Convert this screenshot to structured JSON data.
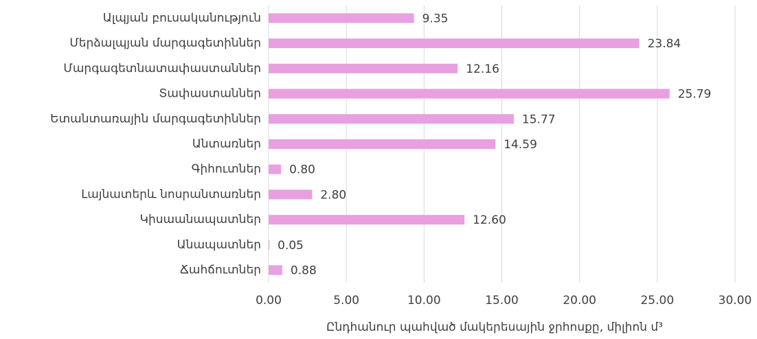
{
  "chart_data": {
    "type": "hbar",
    "categories": [
      "Ալպյան բուսականություն",
      "Մերձալպյան մարգագետիններ",
      "Մարգագետնատափաստաններ",
      "Տափաստաններ",
      "Ետանտառային մարգագետիններ",
      "Անտառներ",
      "Գիհուտներ",
      "Լայնատերև նոսրանտառներ",
      "Կիսաանապատներ",
      "Անապատներ",
      "Ճահճուտներ"
    ],
    "values": [
      9.35,
      23.84,
      12.16,
      25.79,
      15.77,
      14.59,
      0.8,
      2.8,
      12.6,
      0.05,
      0.88
    ],
    "value_labels": [
      "9.35",
      "23.84",
      "12.16",
      "25.79",
      "15.77",
      "14.59",
      "0.80",
      "2.80",
      "12.60",
      "0.05",
      "0.88"
    ],
    "color": "#e8a0e0",
    "xlim": [
      0,
      30
    ],
    "xticks": [
      {
        "value": 0,
        "label": "0.00"
      },
      {
        "value": 5,
        "label": "5.00"
      },
      {
        "value": 10,
        "label": "10.00"
      },
      {
        "value": 15,
        "label": "15.00"
      },
      {
        "value": 20,
        "label": "20.00"
      },
      {
        "value": 25,
        "label": "25.00"
      },
      {
        "value": 30,
        "label": "30.00"
      }
    ],
    "xlabel": "Ընդհանուր պահված մակերեսային ջրհոսքը, միլիոն մ³",
    "grid": true
  }
}
